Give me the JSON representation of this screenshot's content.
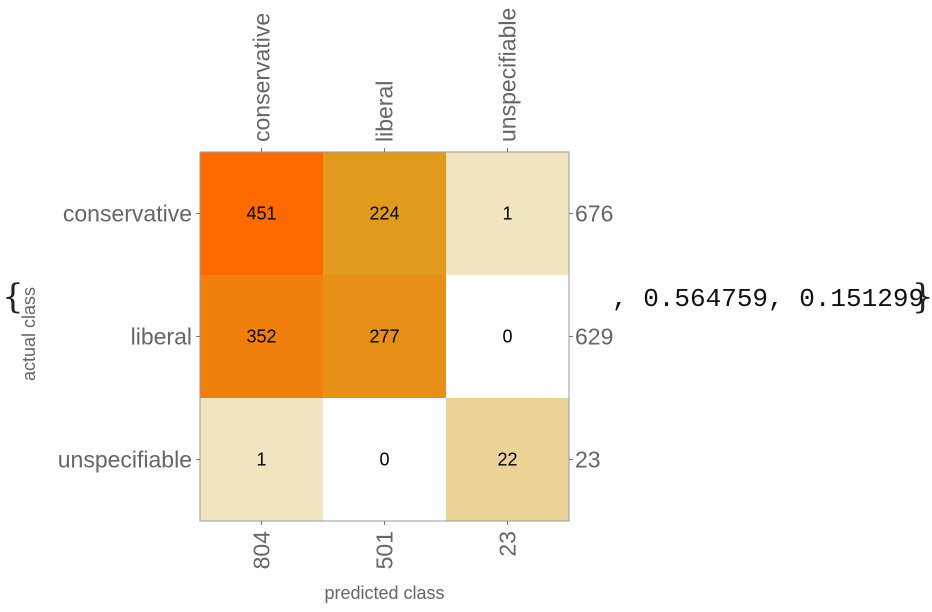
{
  "chart_data": {
    "type": "heatmap",
    "xlabel": "predicted class",
    "ylabel": "actual class",
    "top_labels": [
      "conservative",
      "liberal",
      "unspecifiable"
    ],
    "row_labels": [
      "conservative",
      "liberal",
      "unspecifiable"
    ],
    "matrix": [
      [
        451,
        224,
        1
      ],
      [
        352,
        277,
        0
      ],
      [
        1,
        0,
        22
      ]
    ],
    "row_totals": [
      "676",
      "629",
      "23"
    ],
    "column_totals": [
      "804",
      "501",
      "23"
    ],
    "grid": false,
    "colors": {
      "high": "#ff6a00",
      "mid": "#e09a1c",
      "low": "#f2e8c8",
      "zero": "#ffffff"
    }
  },
  "expression": {
    "open_brace": "{",
    "close_brace": "}",
    "tail_text": ", 0.564759, 0.151299"
  }
}
